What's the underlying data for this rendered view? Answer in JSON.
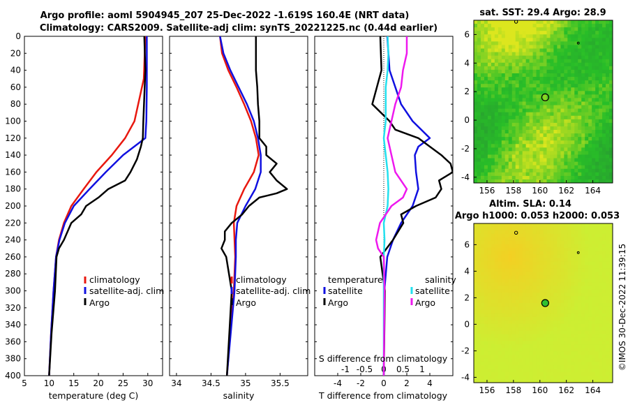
{
  "titles": {
    "line1": "Argo profile: aoml 5904945_207 25-Dec-2022 -1.619S 160.4E (NRT data)",
    "line2": "Climatology: CARS2009. Satellite-adj clim: synTS_20221225.nc (0.44d earlier)"
  },
  "colors": {
    "climatology": "#e8180f",
    "satellite": "#1010e0",
    "argo": "#000000",
    "sal_satellite": "#22e0ee",
    "sal_argo": "#ee18ee"
  },
  "depth_axis": {
    "ticks": [
      "0",
      "20",
      "40",
      "60",
      "80",
      "100",
      "120",
      "140",
      "160",
      "180",
      "200",
      "220",
      "240",
      "260",
      "280",
      "300",
      "320",
      "340",
      "360",
      "380",
      "400"
    ]
  },
  "chart_data": [
    {
      "type": "line",
      "title": "temperature",
      "xlabel": "temperature (deg C)",
      "xlim": [
        5,
        33
      ],
      "ylim": [
        400,
        0
      ],
      "xticks": [
        "5",
        "10",
        "15",
        "20",
        "25",
        "30"
      ],
      "legend": [
        "climatology",
        "satellite-adj. clim",
        "Argo"
      ],
      "series": [
        {
          "name": "climatology",
          "depth": [
            0,
            50,
            100,
            120,
            140,
            160,
            180,
            200,
            220,
            240,
            260,
            300,
            350,
            400
          ],
          "values": [
            29.5,
            29.2,
            27.3,
            25.4,
            22.7,
            19.6,
            17,
            14.5,
            13,
            12,
            11.4,
            10.9,
            10.4,
            10
          ]
        },
        {
          "name": "satellite-adj. clim",
          "depth": [
            0,
            60,
            100,
            120,
            140,
            160,
            180,
            200,
            220,
            240,
            260,
            300,
            350,
            400
          ],
          "values": [
            29.8,
            29.8,
            29.7,
            29.5,
            25,
            21.5,
            18.2,
            15,
            13.2,
            12.1,
            11.4,
            10.9,
            10.4,
            10
          ]
        },
        {
          "name": "Argo",
          "depth": [
            0,
            40,
            100,
            120,
            130,
            145,
            160,
            170,
            180,
            190,
            200,
            210,
            220,
            240,
            250,
            260,
            300,
            350,
            400
          ],
          "values": [
            29.3,
            29.5,
            29.1,
            29,
            28.6,
            27.8,
            26.5,
            25.4,
            22,
            20,
            17.5,
            16.5,
            14.5,
            13,
            12,
            11.5,
            11.2,
            10.5,
            10
          ]
        }
      ]
    },
    {
      "type": "line",
      "title": "salinity",
      "xlabel": "salinity",
      "xlim": [
        33.9,
        35.9
      ],
      "ylim": [
        400,
        0
      ],
      "xticks": [
        "34",
        "34.5",
        "35",
        "35.5"
      ],
      "legend": [
        "climatology",
        "satellite-adj. clim",
        "Argo"
      ],
      "series": [
        {
          "name": "climatology",
          "depth": [
            0,
            20,
            40,
            60,
            80,
            100,
            120,
            140,
            160,
            180,
            200,
            220,
            240,
            260,
            300,
            400
          ],
          "values": [
            34.63,
            34.66,
            34.75,
            34.87,
            34.98,
            35.08,
            35.15,
            35.19,
            35.12,
            34.98,
            34.87,
            34.83,
            34.84,
            34.85,
            34.83,
            34.73
          ]
        },
        {
          "name": "satellite-adj. clim",
          "depth": [
            0,
            20,
            40,
            60,
            80,
            100,
            120,
            140,
            160,
            180,
            200,
            220,
            240,
            260,
            300,
            400
          ],
          "values": [
            34.63,
            34.68,
            34.78,
            34.9,
            35.02,
            35.12,
            35.18,
            35.22,
            35.22,
            35.14,
            35.0,
            34.88,
            34.86,
            34.86,
            34.84,
            34.73
          ]
        },
        {
          "name": "Argo",
          "depth": [
            0,
            20,
            40,
            60,
            80,
            100,
            120,
            130,
            140,
            150,
            160,
            170,
            180,
            185,
            190,
            200,
            210,
            220,
            230,
            240,
            250,
            260,
            300,
            400
          ],
          "values": [
            35.15,
            35.15,
            35.15,
            35.17,
            35.18,
            35.2,
            35.2,
            35.3,
            35.3,
            35.45,
            35.35,
            35.45,
            35.6,
            35.45,
            35.2,
            35.05,
            34.95,
            34.8,
            34.7,
            34.7,
            34.65,
            34.72,
            34.8,
            34.73
          ]
        }
      ]
    },
    {
      "type": "line",
      "title": "difference from climatology",
      "xlabel": "T difference from climatology",
      "xlabel_top": "S difference from climatology",
      "xlim": [
        -6,
        6
      ],
      "slim": [
        -1.8,
        1.8
      ],
      "ylim": [
        400,
        0
      ],
      "xticks": [
        "-4",
        "-2",
        "0",
        "2",
        "4"
      ],
      "sticks": [
        "-1",
        "-0.5",
        "0",
        "0.5",
        "1"
      ],
      "legend_titles": [
        "temperature",
        "salinity"
      ],
      "legend_temperature": [
        "satellite",
        "Argo"
      ],
      "legend_salinity": [
        "satellite",
        "Argo"
      ],
      "series": [
        {
          "name": "temperature satellite",
          "depth": [
            0,
            40,
            80,
            100,
            120,
            130,
            140,
            160,
            180,
            200,
            220,
            240,
            260,
            300,
            400
          ],
          "values": [
            0.3,
            0.5,
            1.5,
            2.5,
            4,
            3,
            2.7,
            2.8,
            3,
            2.5,
            1.5,
            0.8,
            0.3,
            0.05,
            0
          ]
        },
        {
          "name": "temperature Argo",
          "depth": [
            0,
            40,
            80,
            100,
            110,
            120,
            140,
            150,
            160,
            170,
            180,
            190,
            200,
            210,
            220,
            240,
            260,
            300,
            400
          ],
          "values": [
            -0.3,
            -0.2,
            -1,
            0.5,
            1,
            3,
            5,
            5.8,
            6,
            4.8,
            5,
            4.5,
            2.8,
            1.5,
            1.7,
            0.8,
            -0.3,
            0.1,
            0
          ]
        },
        {
          "name": "salinity satellite",
          "depth": [
            0,
            20,
            40,
            60,
            80,
            100,
            120,
            140,
            160,
            180,
            200,
            220,
            240,
            260,
            300,
            400
          ],
          "values": [
            0.1,
            0.12,
            0.1,
            0.05,
            0.05,
            0.05,
            0,
            0.05,
            0.1,
            0.12,
            0.1,
            0,
            0.02,
            0,
            0,
            0
          ]
        },
        {
          "name": "salinity Argo",
          "depth": [
            0,
            20,
            40,
            60,
            80,
            100,
            120,
            140,
            160,
            180,
            190,
            200,
            220,
            240,
            250,
            260,
            300,
            400
          ],
          "values": [
            0.6,
            0.6,
            0.5,
            0.45,
            0.3,
            0.2,
            0.1,
            0.2,
            0.3,
            0.6,
            0.5,
            0.2,
            -0.1,
            -0.2,
            -0.15,
            0,
            0.02,
            0
          ]
        }
      ]
    },
    {
      "type": "heatmap",
      "title": "sat. SST: 29.4 Argo: 28.9",
      "xticks": [
        "156",
        "158",
        "160",
        "162",
        "164"
      ],
      "yticks": [
        "6",
        "4",
        "2",
        "0",
        "-2",
        "-4"
      ],
      "xlim": [
        155,
        165.5
      ],
      "ylim": [
        -4.4,
        7
      ],
      "marker": {
        "lon": 160.4,
        "lat": 1.6
      }
    },
    {
      "type": "heatmap",
      "title_line1": "Altim. SLA: 0.14",
      "title_line2": "Argo h1000: 0.053 h2000: 0.053",
      "xticks": [
        "156",
        "158",
        "160",
        "162",
        "164"
      ],
      "yticks": [
        "6",
        "4",
        "2",
        "0",
        "-2",
        "-4"
      ],
      "xlim": [
        155,
        165.5
      ],
      "ylim": [
        -4.4,
        7.6
      ],
      "marker": {
        "lon": 160.4,
        "lat": 1.6
      }
    }
  ],
  "footer": {
    "stamp": "©IMOS 30-Dec-2022 11:39:15"
  }
}
